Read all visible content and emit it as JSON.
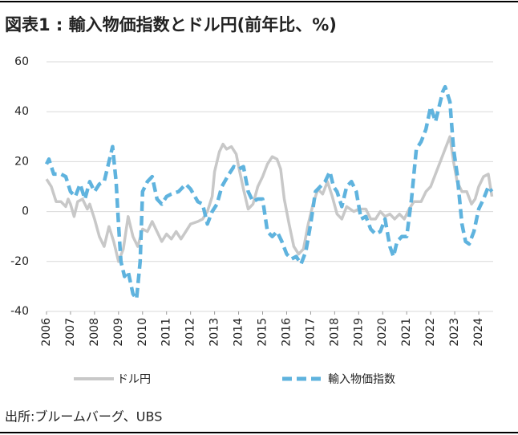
{
  "chart_data": {
    "type": "line",
    "title": "図表1 : 輸入物価指数とドル円(前年比、%)",
    "source": "出所:ブルームバーグ、UBS",
    "xlim": [
      2006,
      2024.6
    ],
    "xticks": [
      2006,
      2007,
      2008,
      2009,
      2010,
      2011,
      2012,
      2013,
      2014,
      2015,
      2016,
      2017,
      2018,
      2019,
      2020,
      2021,
      2022,
      2023,
      2024
    ],
    "ylim": [
      -40,
      60
    ],
    "yticks": [
      -40,
      -20,
      0,
      20,
      40,
      60
    ],
    "negative_tick_color": "#e02020",
    "grid": true,
    "series": [
      {
        "name": "ドル円",
        "color": "#c8c8c8",
        "dash": false,
        "x": [
          2006.0,
          2006.2,
          2006.4,
          2006.6,
          2006.8,
          2006.9,
          2007.0,
          2007.15,
          2007.3,
          2007.5,
          2007.7,
          2007.8,
          2008.0,
          2008.2,
          2008.4,
          2008.6,
          2008.8,
          2009.0,
          2009.2,
          2009.4,
          2009.6,
          2009.8,
          2010.0,
          2010.2,
          2010.4,
          2010.6,
          2010.8,
          2011.0,
          2011.2,
          2011.4,
          2011.6,
          2011.8,
          2012.0,
          2012.3,
          2012.5,
          2012.7,
          2012.9,
          2013.0,
          2013.2,
          2013.35,
          2013.5,
          2013.7,
          2013.9,
          2014.0,
          2014.2,
          2014.4,
          2014.6,
          2014.8,
          2015.0,
          2015.2,
          2015.4,
          2015.6,
          2015.75,
          2015.9,
          2016.1,
          2016.3,
          2016.5,
          2016.7,
          2016.9,
          2017.1,
          2017.3,
          2017.5,
          2017.7,
          2017.9,
          2018.1,
          2018.3,
          2018.5,
          2018.8,
          2019.0,
          2019.3,
          2019.5,
          2019.7,
          2019.9,
          2020.1,
          2020.3,
          2020.5,
          2020.7,
          2020.9,
          2021.1,
          2021.3,
          2021.6,
          2021.8,
          2022.0,
          2022.2,
          2022.4,
          2022.6,
          2022.8,
          2022.95,
          2023.1,
          2023.3,
          2023.5,
          2023.7,
          2023.85,
          2024.0,
          2024.2,
          2024.4,
          2024.55
        ],
        "values": [
          13,
          10,
          4,
          4,
          2,
          5,
          3,
          -2,
          4,
          5,
          1,
          3,
          -3,
          -10,
          -14,
          -6,
          -12,
          -20,
          -15,
          -2,
          -10,
          -14,
          -7,
          -8,
          -4,
          -8,
          -12,
          -9,
          -11,
          -8,
          -11,
          -8,
          -5,
          -4,
          -3,
          0,
          6,
          16,
          24,
          27,
          25,
          26,
          23,
          18,
          9,
          1,
          3,
          10,
          14,
          19,
          22,
          21,
          17,
          5,
          -5,
          -14,
          -17,
          -15,
          -5,
          3,
          9,
          7,
          12,
          6,
          -1,
          -3,
          2,
          0,
          1,
          1,
          -3,
          -3,
          0,
          -2,
          -1,
          -3,
          -1,
          -3,
          1,
          4,
          4,
          8,
          10,
          15,
          20,
          25,
          30,
          20,
          12,
          8,
          8,
          3,
          5,
          10,
          14,
          15,
          6
        ]
      },
      {
        "name": "輸入物価指数",
        "color": "#5fb3de",
        "dash": true,
        "x": [
          2006.0,
          2006.1,
          2006.3,
          2006.6,
          2006.8,
          2007.0,
          2007.2,
          2007.4,
          2007.6,
          2007.8,
          2008.0,
          2008.2,
          2008.4,
          2008.6,
          2008.75,
          2008.9,
          2009.0,
          2009.1,
          2009.25,
          2009.4,
          2009.6,
          2009.75,
          2009.9,
          2010.0,
          2010.2,
          2010.4,
          2010.6,
          2010.8,
          2011.0,
          2011.2,
          2011.5,
          2011.8,
          2012.0,
          2012.3,
          2012.5,
          2012.7,
          2012.9,
          2013.1,
          2013.3,
          2013.6,
          2013.8,
          2014.0,
          2014.2,
          2014.4,
          2014.6,
          2014.8,
          2015.0,
          2015.2,
          2015.4,
          2015.6,
          2015.8,
          2016.0,
          2016.2,
          2016.4,
          2016.6,
          2016.8,
          2017.0,
          2017.2,
          2017.4,
          2017.6,
          2017.8,
          2017.95,
          2018.1,
          2018.3,
          2018.5,
          2018.7,
          2018.9,
          2019.1,
          2019.3,
          2019.5,
          2019.7,
          2019.9,
          2020.1,
          2020.3,
          2020.45,
          2020.6,
          2020.8,
          2021.0,
          2021.2,
          2021.4,
          2021.6,
          2021.8,
          2022.0,
          2022.2,
          2022.3,
          2022.5,
          2022.6,
          2022.8,
          2022.95,
          2023.1,
          2023.3,
          2023.45,
          2023.6,
          2023.8,
          2024.0,
          2024.2,
          2024.4,
          2024.55
        ],
        "values": [
          19,
          21,
          15,
          15,
          14,
          8,
          6,
          11,
          5,
          12,
          8,
          11,
          12,
          20,
          26,
          12,
          -5,
          -20,
          -26,
          -24,
          -33,
          -35,
          -20,
          8,
          12,
          14,
          5,
          3,
          6,
          7,
          8,
          11,
          9,
          4,
          3,
          -5,
          0,
          3,
          10,
          15,
          18,
          17,
          18,
          8,
          4,
          5,
          5,
          -8,
          -10,
          -8,
          -12,
          -17,
          -19,
          -18,
          -21,
          -16,
          -5,
          8,
          10,
          12,
          16,
          10,
          8,
          2,
          10,
          12,
          8,
          -3,
          -2,
          -7,
          -9,
          -8,
          -3,
          -14,
          -18,
          -12,
          -10,
          -10,
          5,
          25,
          28,
          33,
          42,
          36,
          40,
          48,
          50,
          44,
          25,
          15,
          -5,
          -12,
          -13,
          -8,
          1,
          5,
          10,
          8
        ]
      }
    ]
  }
}
